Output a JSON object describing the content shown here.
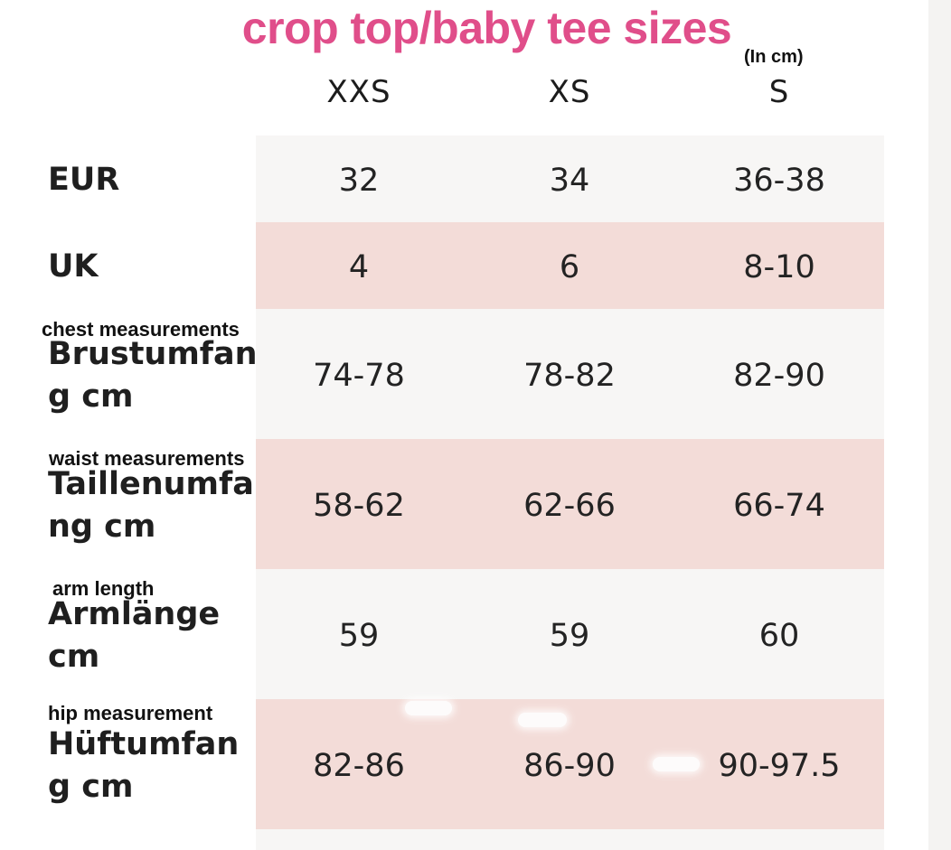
{
  "title": "crop top/baby tee sizes",
  "unit_note": "(In cm)",
  "sizes": [
    "XXS",
    "XS",
    "S"
  ],
  "rows": [
    {
      "label_lines": [
        "EUR"
      ],
      "note": "",
      "values": [
        "32",
        "34",
        "36-38"
      ]
    },
    {
      "label_lines": [
        "UK"
      ],
      "note": "",
      "values": [
        "4",
        "6",
        "8-10"
      ]
    },
    {
      "label_lines": [
        "Brustumfan",
        "g cm"
      ],
      "note": "chest measurements",
      "values": [
        "74-78",
        "78-82",
        "82-90"
      ]
    },
    {
      "label_lines": [
        "Taillenumfa",
        "ng cm"
      ],
      "note": "waist measurements",
      "values": [
        "58-62",
        "62-66",
        "66-74"
      ]
    },
    {
      "label_lines": [
        "Armlänge",
        "cm"
      ],
      "note": "arm length",
      "values": [
        "59",
        "59",
        "60"
      ]
    },
    {
      "label_lines": [
        "Hüftumfan",
        "g cm"
      ],
      "note": "hip measurement",
      "values": [
        "82-86",
        "86-90",
        "90-97.5"
      ]
    }
  ],
  "colors": {
    "title": "#e04e8a",
    "band_light": "#f7f6f5",
    "band_pink": "#f3dcd8"
  }
}
